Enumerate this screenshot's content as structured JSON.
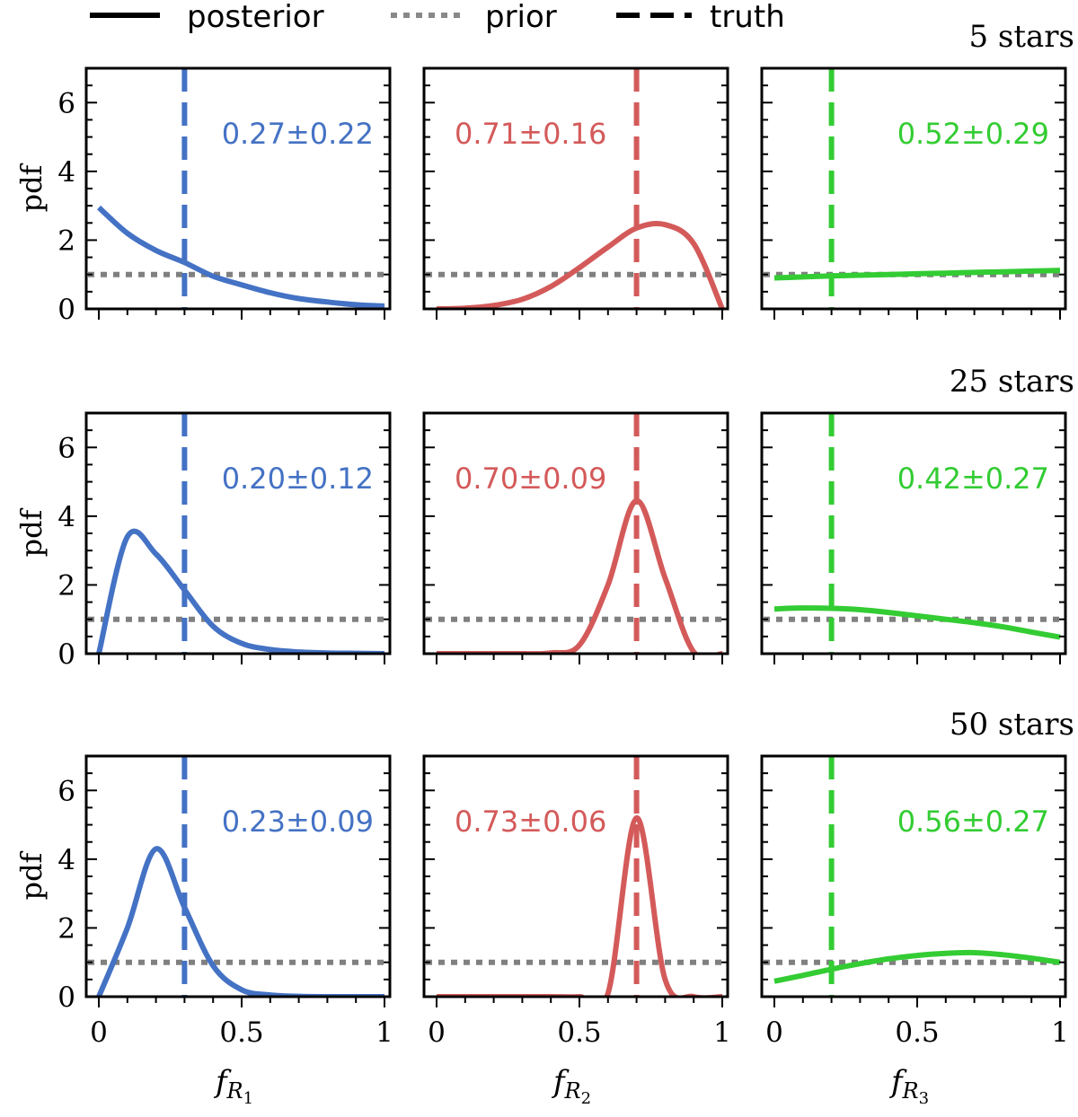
{
  "chart_data": {
    "type": "line",
    "layout": "3x3 grid of small multiples (rows = star counts, columns = fractions)",
    "legend": {
      "placement": "top",
      "entries": [
        {
          "label": "posterior",
          "style": "solid"
        },
        {
          "label": "prior",
          "style": "dotted"
        },
        {
          "label": "truth",
          "style": "dashed"
        }
      ]
    },
    "ylabel": "pdf",
    "xlim": [
      0,
      1
    ],
    "ylim": [
      0,
      7
    ],
    "xticks": [
      0,
      0.5,
      1
    ],
    "xtick_labels": [
      "0",
      "0.5",
      "1"
    ],
    "yticks": [
      0,
      2,
      4,
      6
    ],
    "ytick_labels": [
      "0",
      "2",
      "4",
      "6"
    ],
    "column_xlabels": [
      "f_R1",
      "f_R2",
      "f_R3"
    ],
    "column_xlabel_display": [
      {
        "main": "f",
        "sub": "R",
        "subsub": "1"
      },
      {
        "main": "f",
        "sub": "R",
        "subsub": "2"
      },
      {
        "main": "f",
        "sub": "R",
        "subsub": "3"
      }
    ],
    "colors": [
      "#4472c4",
      "#d45a5a",
      "#33cc33"
    ],
    "prior_color": "#808080",
    "truth": [
      0.3,
      0.7,
      0.2
    ],
    "prior_value": 1.0,
    "x": [
      0.0,
      0.1,
      0.2,
      0.3,
      0.4,
      0.5,
      0.6,
      0.7,
      0.8,
      0.9,
      1.0
    ],
    "rows": [
      {
        "title": "5 stars",
        "panels": [
          {
            "annotation": "0.27±0.22",
            "posterior": [
              2.95,
              2.2,
              1.7,
              1.35,
              0.95,
              0.7,
              0.47,
              0.3,
              0.2,
              0.12,
              0.08
            ]
          },
          {
            "annotation": "0.71±0.16",
            "posterior": [
              0.0,
              0.02,
              0.1,
              0.28,
              0.65,
              1.2,
              1.8,
              2.35,
              2.45,
              1.9,
              0.0
            ]
          },
          {
            "annotation": "0.52±0.29",
            "posterior": [
              0.9,
              0.93,
              0.96,
              0.98,
              1.0,
              1.02,
              1.04,
              1.06,
              1.08,
              1.1,
              1.12
            ]
          }
        ]
      },
      {
        "title": "25 stars",
        "panels": [
          {
            "annotation": "0.20±0.12",
            "posterior": [
              0.0,
              3.4,
              2.9,
              1.85,
              0.8,
              0.3,
              0.12,
              0.05,
              0.02,
              0.01,
              0.0
            ]
          },
          {
            "annotation": "0.70±0.09",
            "posterior": [
              0.0,
              0.0,
              0.0,
              0.0,
              0.02,
              0.25,
              2.0,
              4.45,
              2.2,
              0.05,
              0.0
            ]
          },
          {
            "annotation": "0.42±0.27",
            "posterior": [
              1.3,
              1.33,
              1.32,
              1.28,
              1.2,
              1.1,
              1.0,
              0.9,
              0.78,
              0.63,
              0.48
            ]
          }
        ]
      },
      {
        "title": "50 stars",
        "panels": [
          {
            "annotation": "0.23±0.09",
            "posterior": [
              0.0,
              2.0,
              4.3,
              2.6,
              0.9,
              0.2,
              0.05,
              0.01,
              0.0,
              0.0,
              0.0
            ]
          },
          {
            "annotation": "0.73±0.06",
            "posterior": [
              0.0,
              0.0,
              0.0,
              0.0,
              0.0,
              0.0,
              0.1,
              5.2,
              0.5,
              0.0,
              0.0
            ]
          },
          {
            "annotation": "0.56±0.27",
            "posterior": [
              0.45,
              0.62,
              0.8,
              0.96,
              1.1,
              1.2,
              1.26,
              1.28,
              1.22,
              1.12,
              1.0
            ]
          }
        ]
      }
    ]
  }
}
